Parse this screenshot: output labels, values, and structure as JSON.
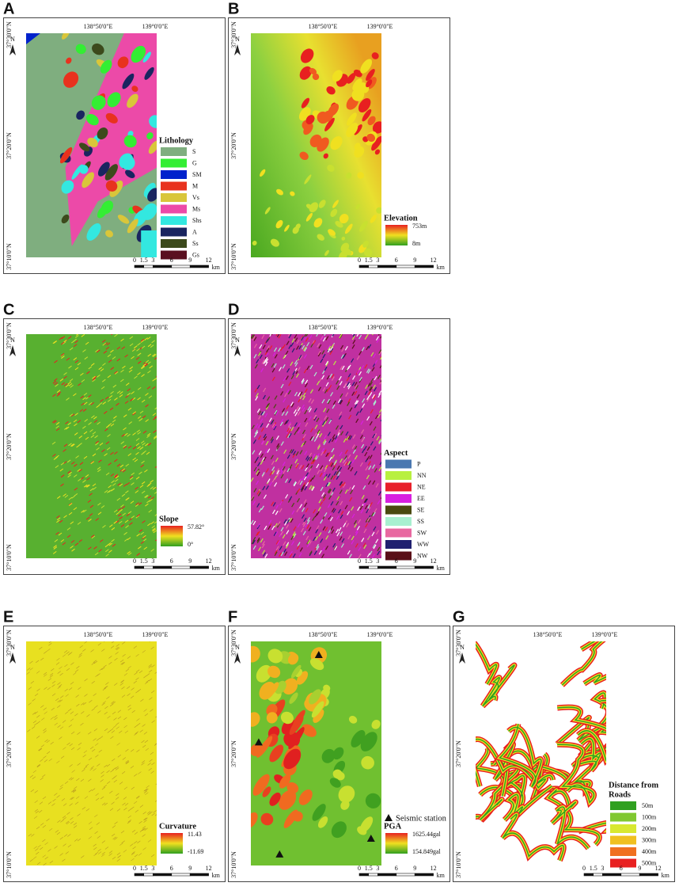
{
  "panels": [
    {
      "letter": "A",
      "north": "N",
      "lon_labels": [
        "138°50'0\"E",
        "139°0'0\"E"
      ],
      "lat_labels": [
        "37°30'0\"N",
        "37°20'0\"N",
        "37°10'0\"N"
      ],
      "legend": {
        "kind": "classes",
        "title": [
          "Lithology"
        ],
        "items": [
          {
            "label": "S",
            "color": "#7fae7f"
          },
          {
            "label": "G",
            "color": "#33ee33"
          },
          {
            "label": "SM",
            "color": "#0022cc"
          },
          {
            "label": "M",
            "color": "#e8321e"
          },
          {
            "label": "Vs",
            "color": "#d9c63a"
          },
          {
            "label": "Ms",
            "color": "#ec4aa8"
          },
          {
            "label": "Shs",
            "color": "#33e8e0"
          },
          {
            "label": "A",
            "color": "#1a2560"
          },
          {
            "label": "Ss",
            "color": "#3c4a1c"
          },
          {
            "label": "Gs",
            "color": "#5a1020"
          }
        ]
      },
      "scale": {
        "ticks": [
          "0",
          "1.5",
          "3",
          "6",
          "9",
          "12"
        ],
        "unit": "km"
      }
    },
    {
      "letter": "B",
      "north": "N",
      "lon_labels": [
        "138°50'0\"E",
        "139°0'0\"E"
      ],
      "lat_labels": [
        "37°30'0\"N",
        "37°20'0\"N",
        "37°10'0\"N"
      ],
      "legend": {
        "kind": "ramp",
        "title": [
          "Elevation"
        ],
        "max": "753m",
        "min": "8m"
      },
      "scale": {
        "ticks": [
          "0",
          "1.5",
          "3",
          "6",
          "9",
          "12"
        ],
        "unit": "km"
      }
    },
    {
      "letter": "C",
      "north": "N",
      "lon_labels": [
        "138°50'0\"E",
        "139°0'0\"E"
      ],
      "lat_labels": [
        "37°30'0\"N",
        "37°20'0\"N",
        "37°10'0\"N"
      ],
      "legend": {
        "kind": "ramp",
        "title": [
          "Slope"
        ],
        "max": "57.82°",
        "min": "0°"
      },
      "scale": {
        "ticks": [
          "0",
          "1.5",
          "3",
          "6",
          "9",
          "12"
        ],
        "unit": "km"
      }
    },
    {
      "letter": "D",
      "north": "N",
      "lon_labels": [
        "138°50'0\"E",
        "139°0'0\"E"
      ],
      "lat_labels": [
        "37°30'0\"N",
        "37°20'0\"N",
        "37°10'0\"N"
      ],
      "legend": {
        "kind": "classes",
        "title": [
          "Aspect"
        ],
        "items": [
          {
            "label": "P",
            "color": "#4a78b0"
          },
          {
            "label": "NN",
            "color": "#b8f040"
          },
          {
            "label": "NE",
            "color": "#e8202a"
          },
          {
            "label": "EE",
            "color": "#d820e0"
          },
          {
            "label": "SE",
            "color": "#4a4a10"
          },
          {
            "label": "SS",
            "color": "#a8f0d0"
          },
          {
            "label": "SW",
            "color": "#e868a0"
          },
          {
            "label": "WW",
            "color": "#202070"
          },
          {
            "label": "NW",
            "color": "#5a1018"
          }
        ]
      },
      "scale": {
        "ticks": [
          "0",
          "1.5",
          "3",
          "6",
          "9",
          "12"
        ],
        "unit": "km"
      }
    },
    {
      "letter": "E",
      "north": "N",
      "lon_labels": [
        "138°50'0\"E",
        "139°0'0\"E"
      ],
      "lat_labels": [
        "37°30'0\"N",
        "37°20'0\"N",
        "37°10'0\"N"
      ],
      "legend": {
        "kind": "ramp",
        "title": [
          "Curvature"
        ],
        "max": "11.43",
        "min": "-11.69"
      },
      "scale": {
        "ticks": [
          "0",
          "1.5",
          "3",
          "6",
          "9",
          "12"
        ],
        "unit": "km"
      }
    },
    {
      "letter": "F",
      "north": "N",
      "lon_labels": [
        "138°50'0\"E",
        "139°0'0\"E"
      ],
      "lat_labels": [
        "37°30'0\"N",
        "37°20'0\"N",
        "37°10'0\"N"
      ],
      "marker_label": "Seismic station",
      "legend": {
        "kind": "ramp",
        "title": [
          "PGA"
        ],
        "max": "1625.44gal",
        "min": "154.849gal"
      },
      "scale": {
        "ticks": [
          "0",
          "1.5",
          "3",
          "6",
          "9",
          "12"
        ],
        "unit": "km"
      }
    },
    {
      "letter": "G",
      "north": "N",
      "lon_labels": [
        "138°50'0\"E",
        "139°0'0\"E"
      ],
      "lat_labels": [
        "37°30'0\"N",
        "37°20'0\"N",
        "37°10'0\"N"
      ],
      "legend": {
        "kind": "classes",
        "title": [
          "Distance from",
          "Roads"
        ],
        "items": [
          {
            "label": "50m",
            "color": "#30a020"
          },
          {
            "label": "100m",
            "color": "#80c830"
          },
          {
            "label": "200m",
            "color": "#d8e830"
          },
          {
            "label": "300m",
            "color": "#f0c020"
          },
          {
            "label": "400m",
            "color": "#f07020"
          },
          {
            "label": "500m",
            "color": "#e82020"
          }
        ]
      },
      "scale": {
        "ticks": [
          "0",
          "1.5",
          "3",
          "6",
          "9",
          "12"
        ],
        "unit": "km"
      }
    }
  ]
}
